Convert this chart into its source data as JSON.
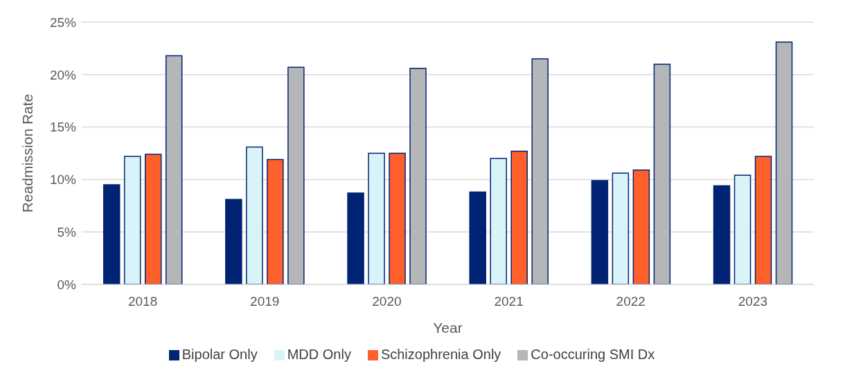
{
  "chart_data": {
    "type": "bar",
    "xlabel": "Year",
    "ylabel": "Readmission Rate",
    "categories": [
      "2018",
      "2019",
      "2020",
      "2021",
      "2022",
      "2023"
    ],
    "series": [
      {
        "name": "Bipolar Only",
        "color": "#002373",
        "values": [
          9.5,
          8.1,
          8.7,
          8.8,
          9.9,
          9.4
        ]
      },
      {
        "name": "MDD Only",
        "color": "#d9f4f8",
        "values": [
          12.2,
          13.1,
          12.5,
          12.0,
          10.6,
          10.4
        ]
      },
      {
        "name": "Schizophrenia Only",
        "color": "#ff5f2a",
        "values": [
          12.4,
          11.9,
          12.5,
          12.7,
          10.9,
          12.2
        ]
      },
      {
        "name": "Co-occuring SMI Dx",
        "color": "#b5b6b8",
        "values": [
          21.8,
          20.7,
          20.6,
          21.5,
          21.0,
          23.1
        ]
      }
    ],
    "ylim": [
      0,
      25
    ],
    "yticks": [
      {
        "value": 0,
        "label": "0%"
      },
      {
        "value": 5,
        "label": "5%"
      },
      {
        "value": 10,
        "label": "10%"
      },
      {
        "value": 15,
        "label": "15%"
      },
      {
        "value": 20,
        "label": "20%"
      },
      {
        "value": 25,
        "label": "25%"
      }
    ],
    "grid": "y",
    "legend": "bottom"
  }
}
